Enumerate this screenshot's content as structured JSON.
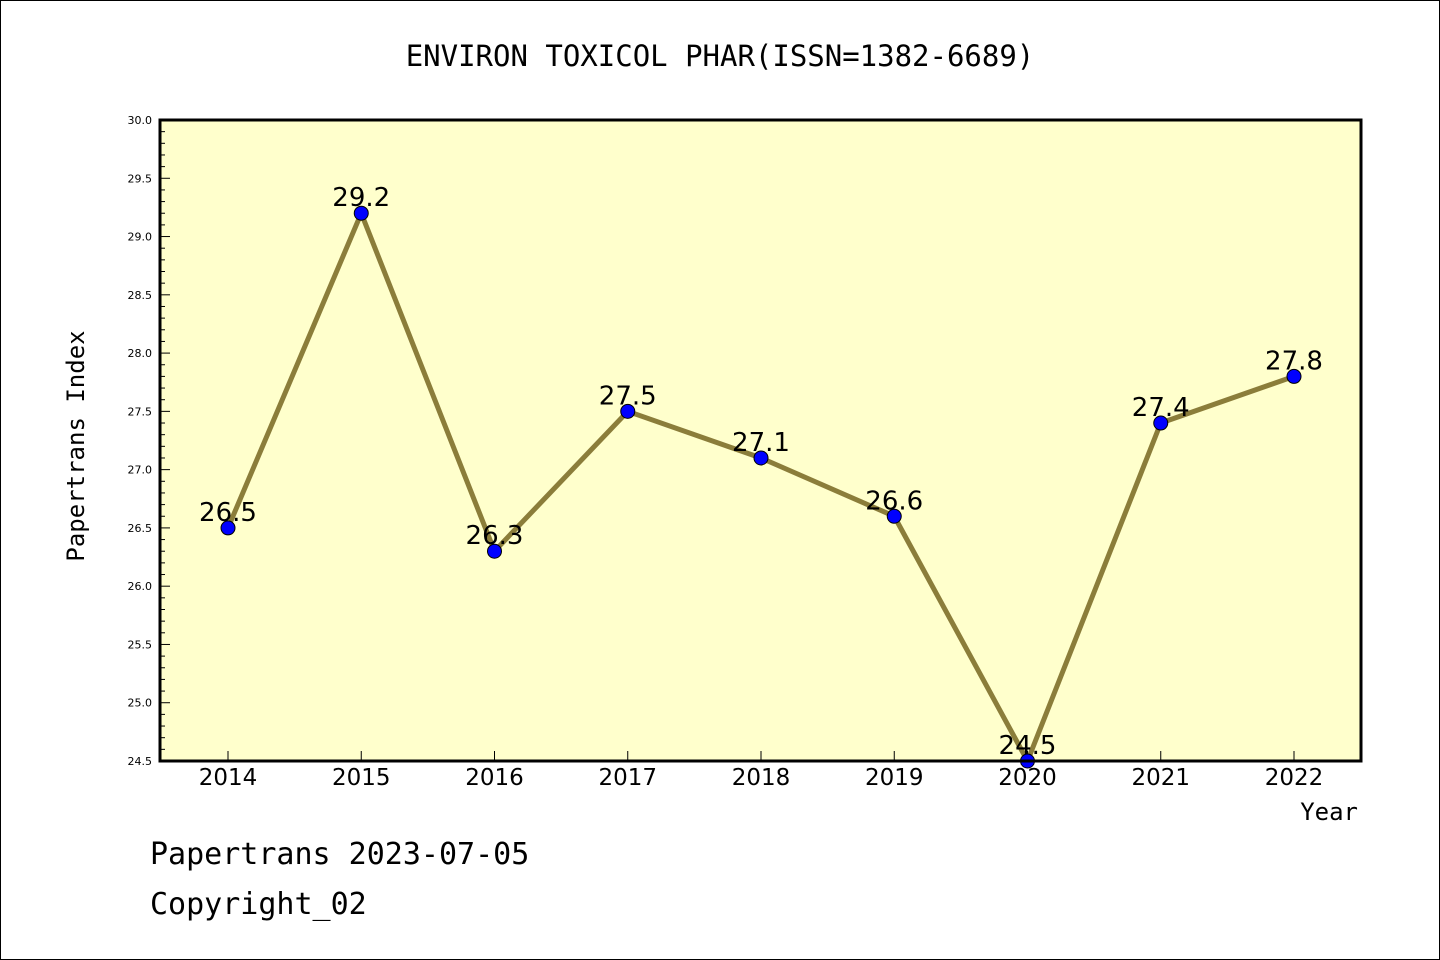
{
  "chart_data": {
    "type": "line",
    "title": "ENVIRON TOXICOL PHAR(ISSN=1382-6689)",
    "xlabel": "Year",
    "ylabel": "Papertrans Index",
    "x": [
      "2014",
      "2015",
      "2016",
      "2017",
      "2018",
      "2019",
      "2020",
      "2021",
      "2022"
    ],
    "values": [
      26.5,
      29.2,
      26.3,
      27.5,
      27.1,
      26.6,
      24.5,
      27.4,
      27.8
    ],
    "data_labels": [
      "26.5",
      "29.2",
      "26.3",
      "27.5",
      "27.1",
      "26.6",
      "24.5",
      "27.4",
      "27.8"
    ],
    "ylim": [
      24.5,
      30.0
    ],
    "yticks": [
      "24.5",
      "25.0",
      "25.5",
      "26.0",
      "26.5",
      "27.0",
      "27.5",
      "28.0",
      "28.5",
      "29.0",
      "29.5",
      "30.0"
    ],
    "grid": false,
    "legend": "none",
    "colors": {
      "plot_background": "#ffffcc",
      "line": "#8b7d3a",
      "marker": "#0000ff"
    }
  },
  "footer": {
    "line1": "Papertrans 2023-07-05",
    "line2": "Copyright_02"
  }
}
